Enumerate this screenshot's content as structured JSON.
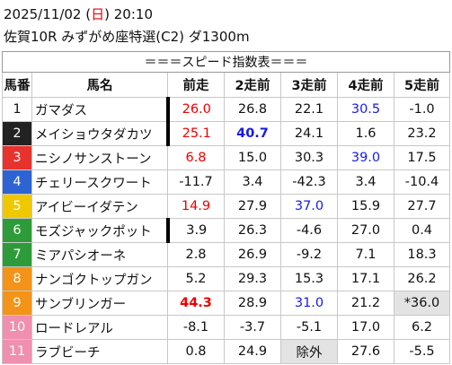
{
  "header": {
    "date": "2025/11/02",
    "weekday_open": "(",
    "weekday": "日",
    "weekday_close": ")",
    "time": "20:10",
    "race": "佐賀10R みずがめ座特選(C2) ダ1300m"
  },
  "table": {
    "title": "＝＝＝スピード指数表＝＝＝",
    "columns": [
      "馬番",
      "馬名",
      "前走",
      "2走前",
      "3走前",
      "4走前",
      "5走前"
    ],
    "rows": [
      [
        "1",
        "ガマダス",
        "26.0",
        "26.8",
        "22.1",
        "30.5",
        "-1.0"
      ],
      [
        "2",
        "メイショウタダカツ",
        "25.1",
        "40.7",
        "24.1",
        "1.6",
        "23.2"
      ],
      [
        "3",
        "ニシノサンストーン",
        "6.8",
        "15.0",
        "30.3",
        "39.0",
        "17.5"
      ],
      [
        "4",
        "チェリースクワート",
        "-11.7",
        "3.4",
        "-42.3",
        "3.4",
        "-10.4"
      ],
      [
        "5",
        "アイビーイダテン",
        "14.9",
        "27.9",
        "37.0",
        "15.9",
        "27.7"
      ],
      [
        "6",
        "モズジャックポット",
        "3.9",
        "26.3",
        "-4.6",
        "27.0",
        "0.4"
      ],
      [
        "7",
        "ミアパシオーネ",
        "2.8",
        "26.9",
        "-9.2",
        "7.1",
        "18.3"
      ],
      [
        "8",
        "ナンゴクトップガン",
        "5.2",
        "29.3",
        "15.3",
        "17.1",
        "26.2"
      ],
      [
        "9",
        "サンブリンガー",
        "44.3",
        "28.9",
        "31.0",
        "21.2",
        "*36.0"
      ],
      [
        "10",
        "ロードレアル",
        "-8.1",
        "-3.7",
        "-5.1",
        "17.0",
        "6.2"
      ],
      [
        "11",
        "ラブビーチ",
        "0.8",
        "24.9",
        "除外",
        "27.6",
        "-5.5"
      ]
    ]
  }
}
